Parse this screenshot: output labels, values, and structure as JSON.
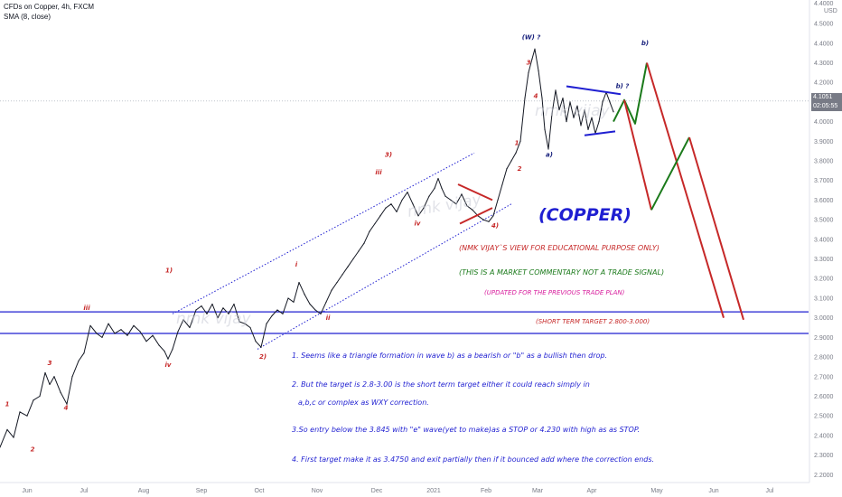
{
  "header": {
    "title": "CFDs on Copper, 4h, FXCM",
    "indicator": "SMA (8, close)"
  },
  "price_axis": {
    "top_label": "4.4000",
    "currency": "USD",
    "current_price": "4.1051",
    "countdown": "02:05:55"
  },
  "colors": {
    "price": "#131722",
    "blue": "#1f1fd1",
    "red": "#c62828",
    "green": "#1b7a1b",
    "magenta": "#d81b9c",
    "navy": "#1a237e"
  },
  "chart_data": {
    "type": "line",
    "title": "CFDs on Copper, 4h, FXCM",
    "xlabel": "",
    "ylabel": "",
    "ylim": [
      2.16,
      4.62
    ],
    "y_ticks": [
      "4.5000",
      "4.4000",
      "4.3000",
      "4.2000",
      "4.1000",
      "4.0000",
      "3.9000",
      "3.8000",
      "3.7000",
      "3.6000",
      "3.5000",
      "3.4000",
      "3.3000",
      "3.2000",
      "3.1000",
      "3.0000",
      "2.9000",
      "2.8000",
      "2.7000",
      "2.6000",
      "2.5000",
      "2.4000",
      "2.3000",
      "2.2000"
    ],
    "x_ticks": [
      {
        "label": "Jun",
        "t": 30
      },
      {
        "label": "Jul",
        "t": 93
      },
      {
        "label": "Aug",
        "t": 159
      },
      {
        "label": "Sep",
        "t": 223
      },
      {
        "label": "Oct",
        "t": 287
      },
      {
        "label": "Nov",
        "t": 351
      },
      {
        "label": "Dec",
        "t": 417
      },
      {
        "label": "2021",
        "t": 480
      },
      {
        "label": "Feb",
        "t": 538
      },
      {
        "label": "Mar",
        "t": 595
      },
      {
        "label": "Apr",
        "t": 655
      },
      {
        "label": "May",
        "t": 727
      },
      {
        "label": "Jun",
        "t": 790
      },
      {
        "label": "Jul",
        "t": 852
      }
    ],
    "series": [
      {
        "values": [
          [
            0,
            2.34
          ],
          [
            8,
            2.43
          ],
          [
            15,
            2.39
          ],
          [
            22,
            2.52
          ],
          [
            30,
            2.5
          ],
          [
            37,
            2.58
          ],
          [
            44,
            2.6
          ],
          [
            50,
            2.72
          ],
          [
            55,
            2.66
          ],
          [
            60,
            2.7
          ],
          [
            67,
            2.62
          ],
          [
            74,
            2.56
          ],
          [
            80,
            2.7
          ],
          [
            87,
            2.78
          ],
          [
            93,
            2.82
          ],
          [
            100,
            2.96
          ],
          [
            107,
            2.92
          ],
          [
            113,
            2.9
          ],
          [
            120,
            2.97
          ],
          [
            127,
            2.92
          ],
          [
            134,
            2.94
          ],
          [
            141,
            2.91
          ],
          [
            148,
            2.96
          ],
          [
            155,
            2.93
          ],
          [
            162,
            2.88
          ],
          [
            169,
            2.91
          ],
          [
            176,
            2.86
          ],
          [
            182,
            2.83
          ],
          [
            186,
            2.79
          ],
          [
            191,
            2.84
          ],
          [
            197,
            2.93
          ],
          [
            203,
            2.99
          ],
          [
            210,
            2.95
          ],
          [
            217,
            3.04
          ],
          [
            223,
            3.06
          ],
          [
            229,
            3.02
          ],
          [
            235,
            3.07
          ],
          [
            241,
            3.0
          ],
          [
            247,
            3.05
          ],
          [
            253,
            3.02
          ],
          [
            259,
            3.07
          ],
          [
            265,
            2.98
          ],
          [
            271,
            2.97
          ],
          [
            277,
            2.95
          ],
          [
            283,
            2.88
          ],
          [
            289,
            2.85
          ],
          [
            295,
            2.97
          ],
          [
            301,
            3.01
          ],
          [
            307,
            3.04
          ],
          [
            313,
            3.02
          ],
          [
            319,
            3.1
          ],
          [
            325,
            3.08
          ],
          [
            331,
            3.18
          ],
          [
            337,
            3.12
          ],
          [
            343,
            3.07
          ],
          [
            349,
            3.04
          ],
          [
            355,
            3.02
          ],
          [
            361,
            3.08
          ],
          [
            367,
            3.14
          ],
          [
            373,
            3.18
          ],
          [
            379,
            3.22
          ],
          [
            385,
            3.26
          ],
          [
            391,
            3.3
          ],
          [
            397,
            3.34
          ],
          [
            403,
            3.38
          ],
          [
            409,
            3.44
          ],
          [
            415,
            3.48
          ],
          [
            421,
            3.52
          ],
          [
            427,
            3.56
          ],
          [
            433,
            3.58
          ],
          [
            439,
            3.54
          ],
          [
            445,
            3.6
          ],
          [
            451,
            3.64
          ],
          [
            457,
            3.58
          ],
          [
            463,
            3.52
          ],
          [
            469,
            3.56
          ],
          [
            475,
            3.62
          ],
          [
            481,
            3.66
          ],
          [
            485,
            3.71
          ],
          [
            489,
            3.66
          ],
          [
            493,
            3.62
          ],
          [
            499,
            3.6
          ],
          [
            505,
            3.58
          ],
          [
            511,
            3.63
          ],
          [
            517,
            3.57
          ],
          [
            523,
            3.55
          ],
          [
            529,
            3.52
          ],
          [
            535,
            3.5
          ],
          [
            541,
            3.49
          ],
          [
            546,
            3.52
          ],
          [
            551,
            3.6
          ],
          [
            556,
            3.68
          ],
          [
            561,
            3.76
          ],
          [
            566,
            3.8
          ],
          [
            571,
            3.84
          ],
          [
            576,
            3.9
          ],
          [
            581,
            4.12
          ],
          [
            585,
            4.25
          ],
          [
            589,
            4.32
          ],
          [
            592,
            4.37
          ],
          [
            596,
            4.26
          ],
          [
            600,
            4.12
          ],
          [
            603,
            3.96
          ],
          [
            607,
            3.86
          ],
          [
            611,
            4.04
          ],
          [
            615,
            4.16
          ],
          [
            619,
            4.06
          ],
          [
            623,
            4.12
          ],
          [
            627,
            4.0
          ],
          [
            631,
            4.1
          ],
          [
            635,
            4.02
          ],
          [
            639,
            4.08
          ],
          [
            643,
            3.98
          ],
          [
            647,
            4.06
          ],
          [
            651,
            3.96
          ],
          [
            655,
            4.02
          ],
          [
            659,
            3.94
          ],
          [
            663,
            4.0
          ],
          [
            667,
            4.1
          ],
          [
            671,
            4.15
          ],
          [
            675,
            4.1
          ],
          [
            679,
            4.05
          ]
        ]
      }
    ],
    "channel": {
      "upper": [
        [
          191,
          3.02
        ],
        [
          525,
          3.84
        ]
      ],
      "lower": [
        [
          285,
          2.84
        ],
        [
          566,
          3.58
        ]
      ]
    },
    "horizontal_lines": [
      {
        "y": 3.03,
        "x_from": 0,
        "x_to": 895,
        "color": "blue"
      },
      {
        "y": 2.92,
        "x_from": 0,
        "x_to": 895,
        "color": "blue"
      }
    ],
    "triangle_lines": [
      {
        "pts": [
          [
            627,
            4.18
          ],
          [
            687,
            4.14
          ]
        ],
        "color": "blue",
        "width": 2
      },
      {
        "pts": [
          [
            647,
            3.93
          ],
          [
            681,
            3.95
          ]
        ],
        "color": "blue",
        "width": 2
      },
      {
        "pts": [
          [
            507,
            3.68
          ],
          [
            545,
            3.6
          ]
        ],
        "color": "red",
        "width": 2
      },
      {
        "pts": [
          [
            509,
            3.48
          ],
          [
            545,
            3.56
          ]
        ],
        "color": "red",
        "width": 2
      }
    ],
    "projections": [
      {
        "pts": [
          [
            679,
            4.0
          ],
          [
            691,
            4.11
          ],
          [
            703,
            3.99
          ],
          [
            716,
            4.3
          ]
        ],
        "color": "green",
        "width": 2
      },
      {
        "pts": [
          [
            691,
            4.11
          ],
          [
            721,
            3.55
          ]
        ],
        "color": "red",
        "width": 2
      },
      {
        "pts": [
          [
            716,
            4.3
          ],
          [
            801,
            3.0
          ]
        ],
        "color": "red",
        "width": 2
      },
      {
        "pts": [
          [
            721,
            3.55
          ],
          [
            763,
            3.92
          ]
        ],
        "color": "green",
        "width": 2
      },
      {
        "pts": [
          [
            763,
            3.92
          ],
          [
            823,
            2.99
          ]
        ],
        "color": "red",
        "width": 2
      }
    ],
    "wave_labels": [
      {
        "text": "1",
        "t": 8,
        "y": 2.55,
        "color": "red"
      },
      {
        "text": "2",
        "t": 36,
        "y": 2.32,
        "color": "red"
      },
      {
        "text": "3",
        "t": 55,
        "y": 2.76,
        "color": "red"
      },
      {
        "text": "4",
        "t": 73,
        "y": 2.53,
        "color": "red"
      },
      {
        "text": "iii",
        "t": 96,
        "y": 3.04,
        "color": "red"
      },
      {
        "text": "1)",
        "t": 187,
        "y": 3.23,
        "color": "red"
      },
      {
        "text": "iv",
        "t": 186,
        "y": 2.75,
        "color": "red"
      },
      {
        "text": "2)",
        "t": 291,
        "y": 2.79,
        "color": "red"
      },
      {
        "text": "i",
        "t": 328,
        "y": 3.26,
        "color": "red"
      },
      {
        "text": "ii",
        "t": 363,
        "y": 2.99,
        "color": "red"
      },
      {
        "text": "iii",
        "t": 419,
        "y": 3.73,
        "color": "red"
      },
      {
        "text": "3)",
        "t": 430,
        "y": 3.82,
        "color": "red"
      },
      {
        "text": "iv",
        "t": 462,
        "y": 3.47,
        "color": "red"
      },
      {
        "text": "4)",
        "t": 548,
        "y": 3.46,
        "color": "red"
      },
      {
        "text": "1",
        "t": 572,
        "y": 3.88,
        "color": "red"
      },
      {
        "text": "2",
        "t": 575,
        "y": 3.75,
        "color": "red"
      },
      {
        "text": "3",
        "t": 585,
        "y": 4.29,
        "color": "red"
      },
      {
        "text": "4",
        "t": 593,
        "y": 4.12,
        "color": "red"
      },
      {
        "text": "a)",
        "t": 608,
        "y": 3.82,
        "color": "navy"
      },
      {
        "text": "(W) ?",
        "t": 588,
        "y": 4.42,
        "color": "navy"
      },
      {
        "text": "b) ?",
        "t": 689,
        "y": 4.17,
        "color": "navy"
      },
      {
        "text": "b)",
        "t": 714,
        "y": 4.39,
        "color": "navy"
      }
    ],
    "annotations": {
      "copper": "(COPPER)",
      "view": "(NMK VIJAY`S VIEW FOR EDUCATIONAL PURPOSE ONLY)",
      "commentary": "(THIS IS A MARKET COMMENTARY NOT A TRADE SIGNAL)",
      "updated": "(UPDATED FOR THE PREVIOUS TRADE PLAN)",
      "target": "(SHORT TERM TARGET 2.800-3.000)",
      "notes": [
        "1. Seems like a triangle formation in wave b) as a bearish or \"b\" as a bullish then drop.",
        "2. But the target is 2.8-3.00 is the short term target either it could reach simply in",
        "a,b,c or complex as WXY correction.",
        "3.So entry below the 3.845 with \"e\" wave(yet to make)as a STOP or 4.230 with high as as STOP.",
        "4. First target make it as 3.4750 and exit partially then if it bounced add where the correction ends."
      ],
      "watermark": "nmk vijay"
    },
    "grid": false
  }
}
